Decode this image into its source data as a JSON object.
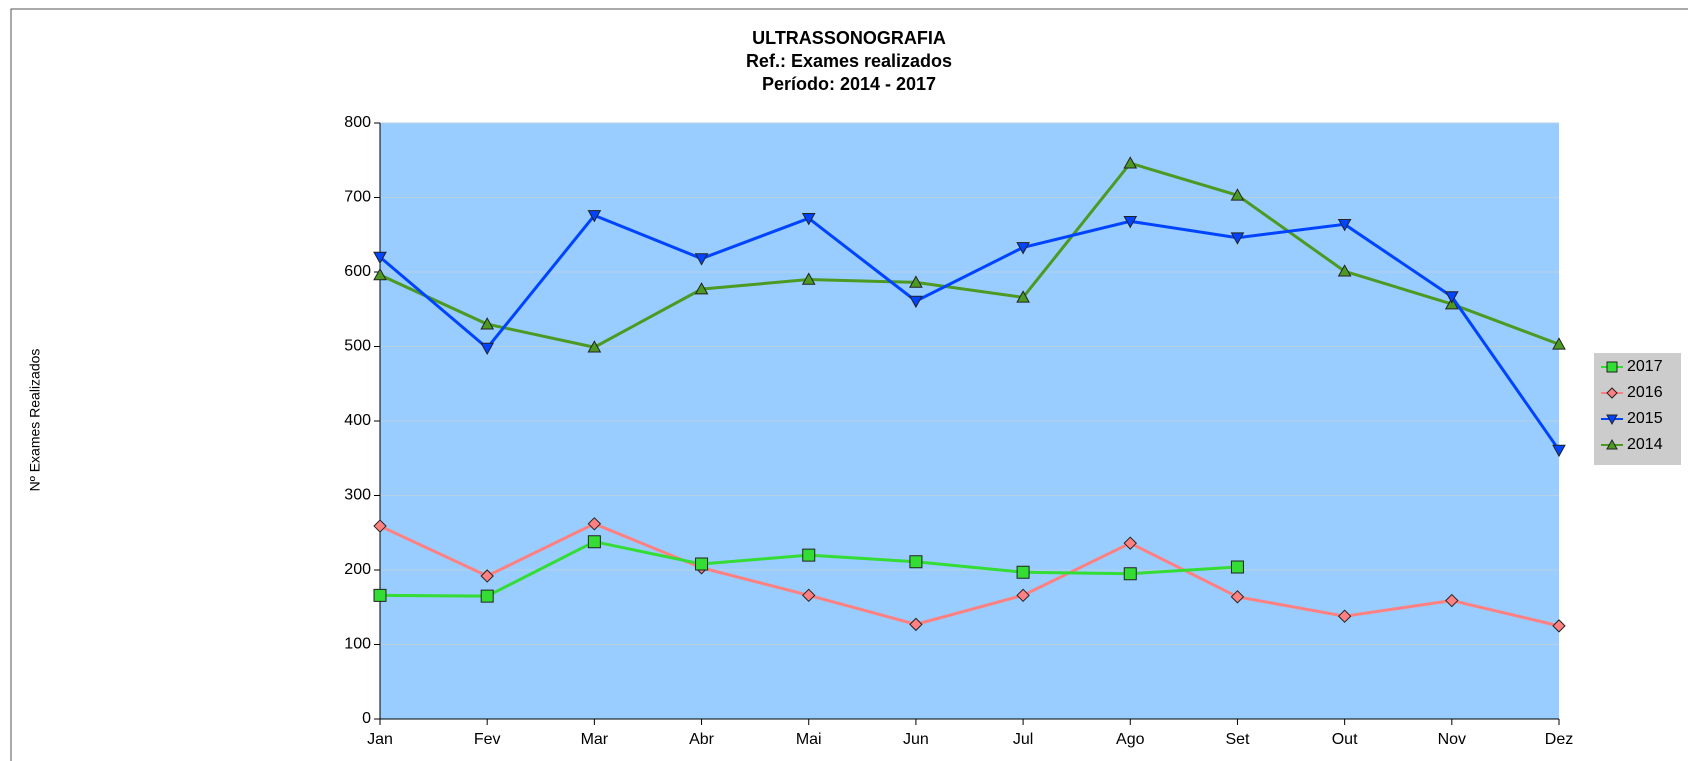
{
  "chart_data": {
    "type": "line",
    "title": "ULTRASSONOGRAFIA",
    "subtitle": [
      "Ref.: Exames realizados",
      "Período: 2014 - 2017"
    ],
    "y_label": "Nº Exames Realizados",
    "categories": [
      "Jan",
      "Fev",
      "Mar",
      "Abr",
      "Mai",
      "Jun",
      "Jul",
      "Ago",
      "Set",
      "Out",
      "Nov",
      "Dez"
    ],
    "series": [
      {
        "name": "2017",
        "color": "#33dd33",
        "marker": "square",
        "values": [
          166,
          165,
          238,
          208,
          220,
          211,
          197,
          195,
          204,
          null,
          null,
          null
        ]
      },
      {
        "name": "2016",
        "color": "#ff8080",
        "marker": "diamond",
        "values": [
          259,
          192,
          262,
          203,
          166,
          127,
          166,
          236,
          164,
          138,
          159,
          125
        ]
      },
      {
        "name": "2015",
        "color": "#0044ff",
        "marker": "triangle-down",
        "values": [
          620,
          498,
          676,
          618,
          672,
          561,
          633,
          668,
          646,
          664,
          567,
          361
        ]
      },
      {
        "name": "2014",
        "color": "#4d9a22",
        "marker": "triangle-up",
        "values": [
          596,
          530,
          499,
          577,
          590,
          586,
          566,
          746,
          703,
          601,
          557,
          503
        ]
      }
    ],
    "ylim": [
      0,
      800
    ],
    "yticks": [
      0,
      100,
      200,
      300,
      400,
      500,
      600,
      700,
      800
    ],
    "grid": true,
    "plot_background": "#99ccff",
    "legend": "right"
  }
}
